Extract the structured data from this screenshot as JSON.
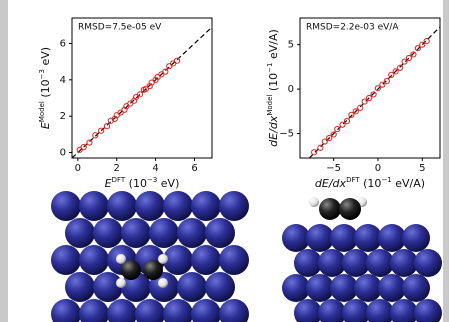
{
  "chart_data": [
    {
      "type": "scatter",
      "annotation": "RMSD=7.5e-05 eV",
      "x_label": [
        {
          "text": "E"
        },
        {
          "text": "DFT",
          "sup": true
        },
        {
          "text": " (10"
        },
        {
          "text": "−3",
          "sup": true
        },
        {
          "text": " eV)"
        }
      ],
      "y_label": [
        {
          "text": "E"
        },
        {
          "text": "Model",
          "sup": true
        },
        {
          "text": " (10"
        },
        {
          "text": "−3",
          "sup": true
        },
        {
          "text": " eV)"
        }
      ],
      "color": "#e8201a",
      "x": [
        0.1,
        0.3,
        0.6,
        0.9,
        1.2,
        1.5,
        1.7,
        1.9,
        2.0,
        2.2,
        2.4,
        2.5,
        2.7,
        2.9,
        3.0,
        3.2,
        3.4,
        3.5,
        3.7,
        3.8,
        4.0,
        4.1,
        4.3,
        4.5,
        4.7,
        4.9,
        5.1
      ],
      "values": [
        0.15,
        0.3,
        0.55,
        0.95,
        1.2,
        1.45,
        1.75,
        1.85,
        2.05,
        2.2,
        2.35,
        2.55,
        2.7,
        2.85,
        3.05,
        3.2,
        3.45,
        3.5,
        3.65,
        3.85,
        4.0,
        4.15,
        4.3,
        4.45,
        4.75,
        4.9,
        5.05
      ],
      "xlim": [
        -0.3,
        6.9
      ],
      "ylim": [
        -0.3,
        7.4
      ],
      "xticks": [
        0,
        2,
        4,
        6
      ],
      "yticks": [
        0,
        2,
        4,
        6
      ]
    },
    {
      "type": "scatter",
      "annotation": "RMSD=2.2e-03 eV/A",
      "x_label": [
        {
          "text": "dE/dx"
        },
        {
          "text": "DFT",
          "sup": true
        },
        {
          "text": " (10"
        },
        {
          "text": "−1",
          "sup": true
        },
        {
          "text": " eV/A)"
        }
      ],
      "y_label": [
        {
          "text": "dE/dx"
        },
        {
          "text": "Model",
          "sup": true
        },
        {
          "text": " (10"
        },
        {
          "text": "−1",
          "sup": true
        },
        {
          "text": " eV/A)"
        }
      ],
      "color": "#e8201a",
      "x": [
        -7.2,
        -6.5,
        -6,
        -5.5,
        -5,
        -4.6,
        -4,
        -3.5,
        -3,
        -2.5,
        -2,
        -1.5,
        -1,
        -0.5,
        0,
        0.5,
        1,
        1.5,
        2,
        2.5,
        3,
        3.5,
        4,
        4.5,
        5,
        5.5
      ],
      "values": [
        -7.1,
        -6.6,
        -5.9,
        -5.5,
        -5.1,
        -4.5,
        -4.0,
        -3.6,
        -2.9,
        -2.5,
        -2.1,
        -1.4,
        -1.0,
        -0.6,
        0.1,
        0.5,
        0.9,
        1.6,
        2.0,
        2.4,
        3.1,
        3.5,
        3.9,
        4.6,
        5.0,
        5.4
      ],
      "xlim": [
        -8.8,
        7.0
      ],
      "ylim": [
        -7.75,
        8.0
      ],
      "xticks": [
        {
          "value": -5,
          "label": "−5"
        },
        0,
        5
      ],
      "yticks": [
        {
          "value": -5,
          "label": "−5"
        },
        0,
        5
      ]
    }
  ]
}
